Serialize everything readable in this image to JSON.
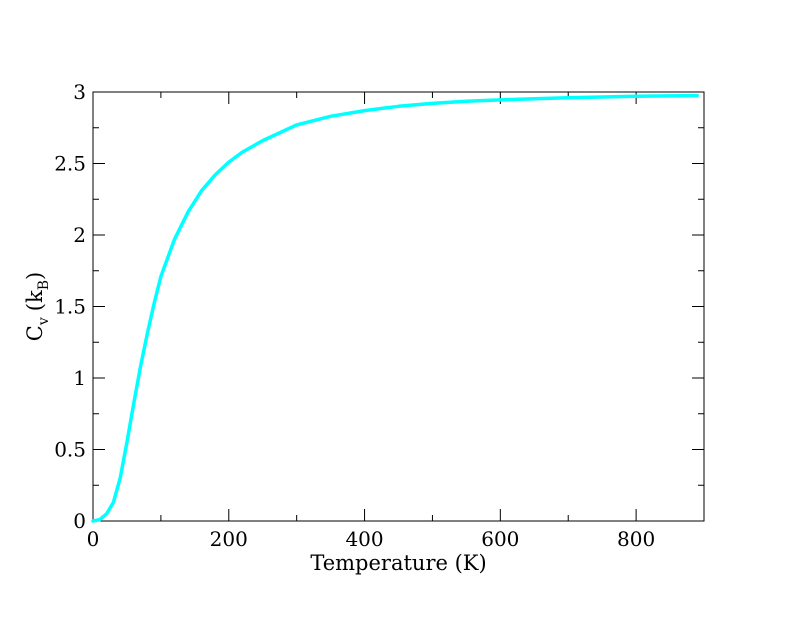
{
  "chart_data": {
    "type": "line",
    "xlabel": "Temperature (K)",
    "ylabel": {
      "main": "C",
      "sub_v": "v",
      "paren_open": "(k",
      "sub_b": "B",
      "paren_close": ")"
    },
    "xlim": [
      0,
      900
    ],
    "ylim": [
      0,
      3
    ],
    "x_major_ticks": [
      0,
      200,
      400,
      600,
      800
    ],
    "x_minor_ticks": [
      100,
      300,
      500,
      700
    ],
    "x_tick_labels": [
      "0",
      "200",
      "400",
      "600",
      "800"
    ],
    "y_major_ticks": [
      0,
      0.5,
      1,
      1.5,
      2,
      2.5,
      3
    ],
    "y_minor_ticks": [
      0.25,
      0.75,
      1.25,
      1.75,
      2.25,
      2.75
    ],
    "y_tick_labels": [
      "0",
      "0.5",
      "1",
      "1.5",
      "2",
      "2.5",
      "3"
    ],
    "grid": false,
    "series": [
      {
        "color": "#00ffff",
        "x": [
          0,
          10,
          20,
          30,
          40,
          50,
          60,
          70,
          80,
          90,
          100,
          120,
          140,
          160,
          180,
          200,
          220,
          250,
          300,
          350,
          400,
          450,
          500,
          550,
          600,
          650,
          700,
          750,
          800,
          850,
          890
        ],
        "y": [
          0,
          0.01,
          0.05,
          0.13,
          0.3,
          0.55,
          0.82,
          1.08,
          1.31,
          1.52,
          1.71,
          1.97,
          2.16,
          2.31,
          2.42,
          2.51,
          2.58,
          2.66,
          2.77,
          2.83,
          2.87,
          2.9,
          2.92,
          2.935,
          2.945,
          2.953,
          2.96,
          2.965,
          2.97,
          2.973,
          2.975
        ]
      }
    ]
  }
}
